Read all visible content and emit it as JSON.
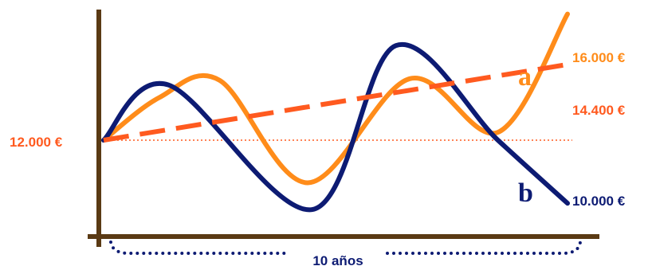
{
  "chart_data": {
    "type": "line",
    "start_label": "12.000 €",
    "period_label": "10 años",
    "colors": {
      "axis": "#5a3a14",
      "series_a": "#ff8c1a",
      "series_b": "#0d1b73",
      "trend": "#ff5a1f",
      "baseline": "#ff5a1f",
      "start_label": "#ff5a1f",
      "period_label": "#0d1b73"
    },
    "series": [
      {
        "name": "a",
        "end_label": "16.000 €",
        "curve": [
          {
            "t": 0.0,
            "v": 12000
          },
          {
            "t": 1.2,
            "v": 13350
          },
          {
            "t": 2.5,
            "v": 13900
          },
          {
            "t": 4.4,
            "v": 10650
          },
          {
            "t": 6.6,
            "v": 13950
          },
          {
            "t": 8.5,
            "v": 12250
          },
          {
            "t": 10.0,
            "v": 16000
          }
        ]
      },
      {
        "name": "b",
        "end_label": "10.000 €",
        "curve": [
          {
            "t": 0.0,
            "v": 12000
          },
          {
            "t": 1.4,
            "v": 13750
          },
          {
            "t": 4.5,
            "v": 9800
          },
          {
            "t": 6.3,
            "v": 15000
          },
          {
            "t": 8.5,
            "v": 12000
          },
          {
            "t": 10.0,
            "v": 10000
          }
        ]
      },
      {
        "name": "trend",
        "end_label": "14.400 €",
        "curve": [
          {
            "t": 0.0,
            "v": 12000
          },
          {
            "t": 10.0,
            "v": 14400
          }
        ]
      }
    ]
  }
}
